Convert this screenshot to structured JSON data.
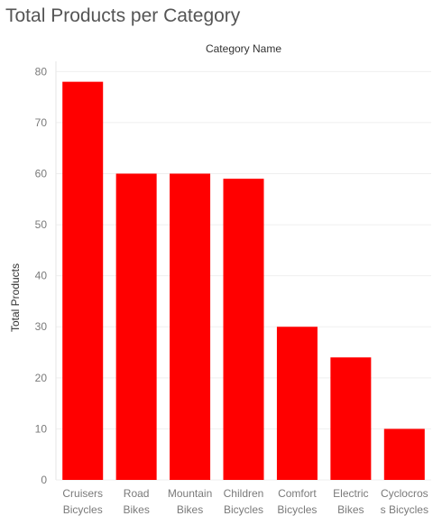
{
  "chart_data": {
    "type": "bar",
    "title": "Total Products per Category",
    "header": "Category Name",
    "ylabel": "Total Products",
    "categories": [
      [
        "Cruisers",
        "Bicycles"
      ],
      [
        "Road",
        "Bikes"
      ],
      [
        "Mountain",
        "Bikes"
      ],
      [
        "Children",
        "Bicycles"
      ],
      [
        "Comfort",
        "Bicycles"
      ],
      [
        "Electric",
        "Bikes"
      ],
      [
        "Cyclocros",
        "s Bicycles"
      ]
    ],
    "values": [
      78,
      60,
      60,
      59,
      30,
      24,
      10
    ],
    "yticks": [
      "0",
      "10",
      "20",
      "30",
      "40",
      "50",
      "60",
      "70",
      "80"
    ],
    "ylim": [
      0,
      82
    ],
    "bar_color": "#ff0000",
    "grid": true
  }
}
